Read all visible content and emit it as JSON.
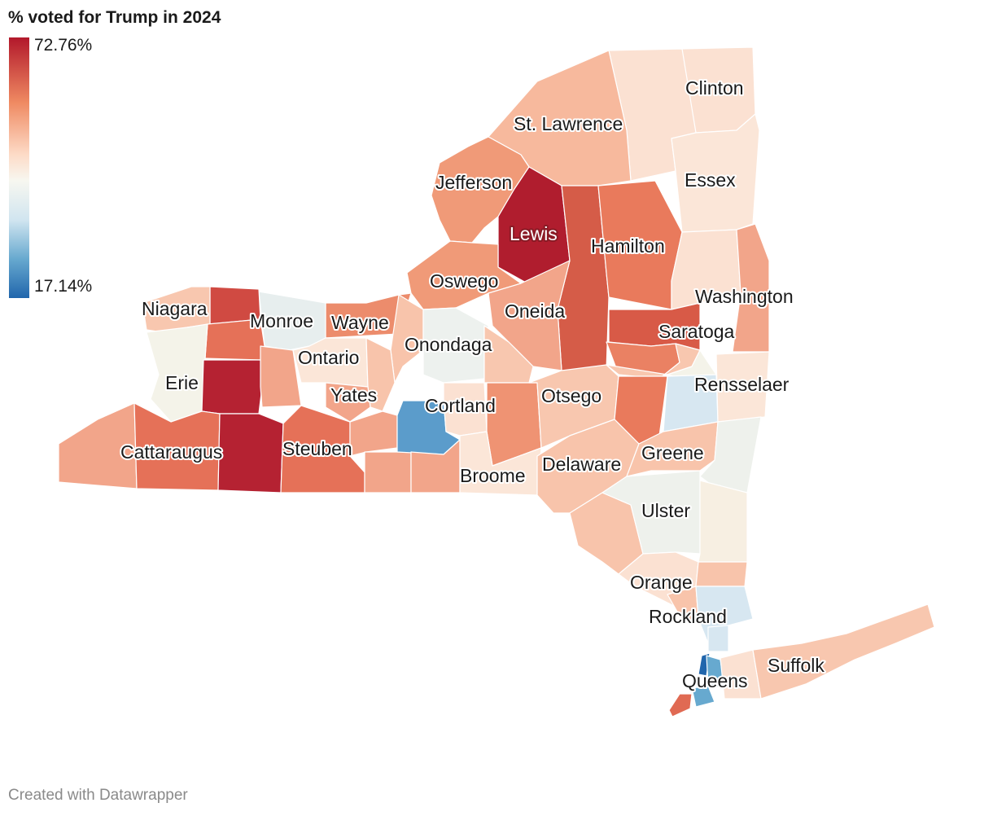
{
  "title": "% voted for Trump in 2024",
  "legend": {
    "max_label": "72.76%",
    "min_label": "17.14%",
    "color_high": "#b2182b",
    "color_mid": "#f7f7f0",
    "color_low": "#2166ac"
  },
  "footer": "Created with Datawrapper",
  "labels": {
    "clinton": "Clinton",
    "st_lawrence": "St. Lawrence",
    "essex": "Essex",
    "jefferson": "Jefferson",
    "lewis": "Lewis",
    "hamilton": "Hamilton",
    "oswego": "Oswego",
    "washington": "Washington",
    "niagara": "Niagara",
    "monroe": "Monroe",
    "wayne": "Wayne",
    "oneida": "Oneida",
    "saratoga": "Saratoga",
    "onondaga": "Onondaga",
    "ontario": "Ontario",
    "erie": "Erie",
    "rensselaer": "Rensselaer",
    "yates": "Yates",
    "cortland": "Cortland",
    "otsego": "Otsego",
    "cattaraugus": "Cattaraugus",
    "steuben": "Steuben",
    "greene": "Greene",
    "delaware": "Delaware",
    "broome": "Broome",
    "ulster": "Ulster",
    "orange": "Orange",
    "rockland": "Rockland",
    "suffolk": "Suffolk",
    "queens": "Queens"
  }
}
